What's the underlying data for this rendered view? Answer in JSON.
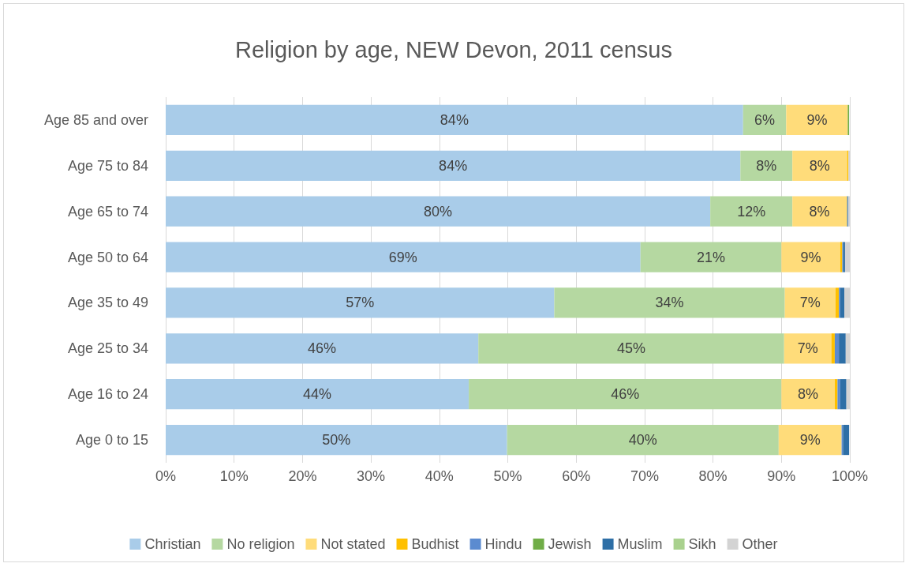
{
  "chart_data": {
    "type": "bar",
    "orientation": "horizontal",
    "stacked": true,
    "title": "Religion by age, NEW Devon, 2011 census",
    "categories": [
      "Age 85 and over",
      "Age 75 to 84",
      "Age 65 to 74",
      "Age 50 to 64",
      "Age 35 to 49",
      "Age 25 to 34",
      "Age 16 to 24",
      "Age 0 to 15"
    ],
    "series": [
      {
        "name": "Christian",
        "color": "#a9cce9",
        "values": [
          84.4,
          84.0,
          79.6,
          69.4,
          56.8,
          45.7,
          44.3,
          49.9
        ],
        "value_labels": [
          "84%",
          "84%",
          "80%",
          "69%",
          "57%",
          "46%",
          "44%",
          "50%"
        ]
      },
      {
        "name": "No religion",
        "color": "#b5d8a1",
        "values": [
          6.3,
          7.6,
          12.0,
          20.6,
          33.7,
          44.7,
          45.7,
          39.7
        ],
        "value_labels": [
          "6%",
          "8%",
          "12%",
          "21%",
          "34%",
          "45%",
          "46%",
          "40%"
        ]
      },
      {
        "name": "Not stated",
        "color": "#ffdc7a",
        "values": [
          9.0,
          8.0,
          7.9,
          8.6,
          7.4,
          6.9,
          7.8,
          9.2
        ],
        "value_labels": [
          "9%",
          "8%",
          "8%",
          "9%",
          "7%",
          "7%",
          "8%",
          "9%"
        ]
      },
      {
        "name": "Budhist",
        "color": "#ffc000",
        "values": [
          0,
          0.2,
          0.1,
          0.3,
          0.5,
          0.5,
          0.4,
          null
        ]
      },
      {
        "name": "Hindu",
        "color": "#5b8bd0",
        "values": [
          0,
          0,
          0.1,
          0.1,
          0.2,
          0.6,
          0.4,
          0.2
        ]
      },
      {
        "name": "Jewish",
        "color": "#70ad47",
        "values": [
          0.2,
          0,
          0,
          0,
          0,
          0,
          0,
          0
        ]
      },
      {
        "name": "Muslim",
        "color": "#2e6fa6",
        "values": [
          0,
          0,
          0.1,
          0.3,
          0.6,
          1.0,
          0.9,
          0.9
        ]
      },
      {
        "name": "Sikh",
        "color": "#a9d18e",
        "values": [
          0,
          0,
          0,
          0,
          0,
          0,
          0,
          0
        ]
      },
      {
        "name": "Other",
        "color": "#d3d3d3",
        "values": [
          null,
          0.2,
          0.2,
          0.7,
          0.8,
          0.6,
          0.5,
          0
        ]
      }
    ],
    "xlim": [
      0,
      100
    ],
    "xticks": [
      {
        "value": 0,
        "label": "0%"
      },
      {
        "value": 10,
        "label": "10%"
      },
      {
        "value": 20,
        "label": "20%"
      },
      {
        "value": 30,
        "label": "30%"
      },
      {
        "value": 40,
        "label": "40%"
      },
      {
        "value": 50,
        "label": "50%"
      },
      {
        "value": 60,
        "label": "60%"
      },
      {
        "value": 70,
        "label": "70%"
      },
      {
        "value": 80,
        "label": "80%"
      },
      {
        "value": 90,
        "label": "90%"
      },
      {
        "value": 100,
        "label": "100%"
      }
    ],
    "grid": "x",
    "legend": "bottom"
  }
}
